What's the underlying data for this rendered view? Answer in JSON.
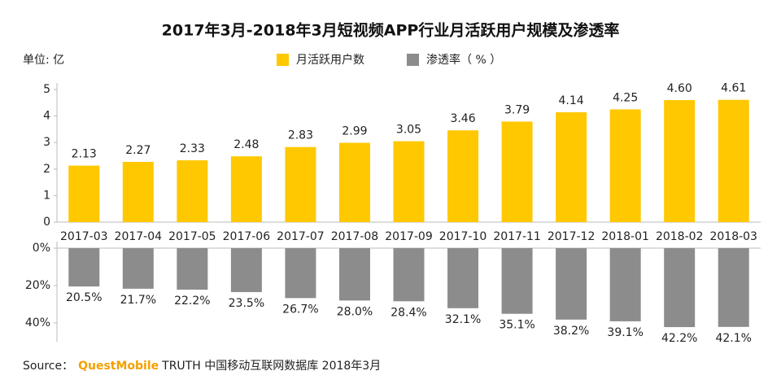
{
  "title": "2017年3月-2018年3月短视频APP行业月活跃用户规模及渗透率",
  "unit_label": "单位: 亿",
  "source": {
    "label": "Source：",
    "brand": "QuestMobile",
    "text": "TRUTH 中国移动互联网数据库 2018年3月"
  },
  "chart_data": [
    {
      "type": "bar",
      "categories": [
        "2017-03",
        "2017-04",
        "2017-05",
        "2017-06",
        "2017-07",
        "2017-08",
        "2017-09",
        "2017-10",
        "2017-11",
        "2017-12",
        "2018-01",
        "2018-02",
        "2018-03"
      ],
      "series": [
        {
          "name": "月活跃用户数",
          "color": "#ffc800",
          "values": [
            2.13,
            2.27,
            2.33,
            2.48,
            2.83,
            2.99,
            3.05,
            3.46,
            3.79,
            4.14,
            4.25,
            4.6,
            4.61
          ],
          "value_labels": [
            "2.13",
            "2.27",
            "2.33",
            "2.48",
            "2.83",
            "2.99",
            "3.05",
            "3.46",
            "3.79",
            "4.14",
            "4.25",
            "4.60",
            "4.61"
          ]
        }
      ],
      "ylim": [
        0,
        5
      ],
      "yticks": [
        0,
        1,
        2,
        3,
        4,
        5
      ]
    },
    {
      "type": "bar",
      "inverted": true,
      "series": [
        {
          "name": "渗透率（ % ）",
          "color": "#8c8c8c",
          "values": [
            20.5,
            21.7,
            22.2,
            23.5,
            26.7,
            28.0,
            28.4,
            32.1,
            35.1,
            38.2,
            39.1,
            42.2,
            42.1
          ],
          "value_labels": [
            "20.5%",
            "21.7%",
            "22.2%",
            "23.5%",
            "26.7%",
            "28.0%",
            "28.4%",
            "32.1%",
            "35.1%",
            "38.2%",
            "39.1%",
            "42.2%",
            "42.1%"
          ]
        }
      ],
      "ylim": [
        0,
        50
      ],
      "yticks": [
        {
          "value": 0,
          "label": "0%"
        },
        {
          "value": 20,
          "label": "20%"
        },
        {
          "value": 40,
          "label": "40%"
        }
      ]
    }
  ]
}
